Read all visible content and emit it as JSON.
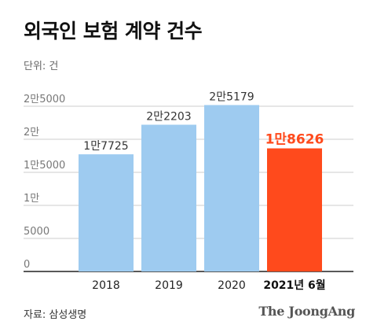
{
  "header": {
    "title": "외국인 보험 계약 건수",
    "unit": "단위: 건"
  },
  "footer": {
    "source": "자료: 삼성생명",
    "brand": "The JoongAng"
  },
  "colors": {
    "bar": "#9ECBF0",
    "highlight": "#FF4A1C",
    "grid": "#CCCCCC",
    "axis": "#222222"
  },
  "chart_data": {
    "type": "bar",
    "title": "외국인 보험 계약 건수",
    "unit": "단위: 건",
    "xlabel": "",
    "ylabel": "",
    "categories": [
      "2018",
      "2019",
      "2020",
      "2021년 6월"
    ],
    "values": [
      17725,
      22203,
      25179,
      18626
    ],
    "value_labels": [
      "1만7725",
      "2만2203",
      "2만5179",
      "1만8626"
    ],
    "highlight_index": 3,
    "ylim": [
      0,
      25000
    ],
    "yticks": [
      0,
      5000,
      10000,
      15000,
      20000,
      25000
    ],
    "ytick_labels": [
      "0",
      "5000",
      "1만",
      "1만5000",
      "2만",
      "2만5000"
    ],
    "grid": true,
    "legend": "none"
  }
}
